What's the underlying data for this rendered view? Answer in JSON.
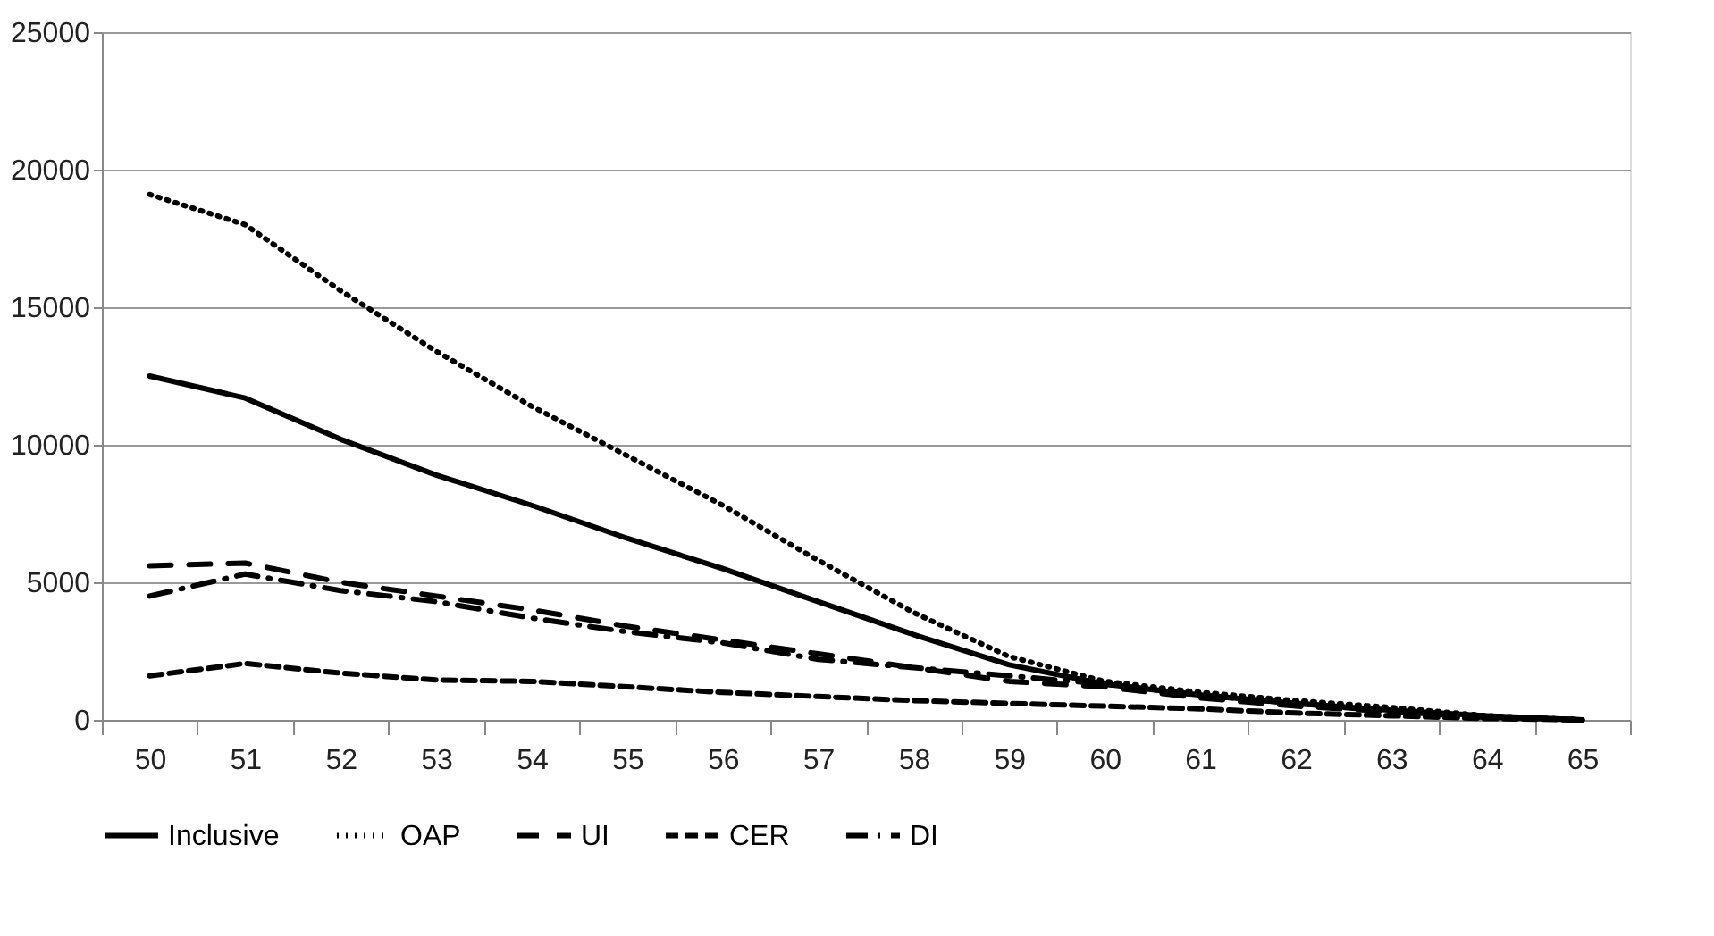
{
  "chart_data": {
    "type": "line",
    "categories": [
      "50",
      "51",
      "52",
      "53",
      "54",
      "55",
      "56",
      "57",
      "58",
      "59",
      "60",
      "61",
      "62",
      "63",
      "64",
      "65"
    ],
    "series": [
      {
        "name": "Inclusive",
        "color": "#000000",
        "line_style": "solid",
        "values": [
          12500,
          11700,
          10200,
          8900,
          7800,
          6600,
          5500,
          4300,
          3100,
          2000,
          1300,
          900,
          600,
          350,
          150,
          0
        ]
      },
      {
        "name": "OAP",
        "color": "#000000",
        "line_style": "dotted",
        "values": [
          19100,
          18000,
          15600,
          13400,
          11400,
          9600,
          7800,
          5800,
          3900,
          2300,
          1400,
          1000,
          700,
          450,
          150,
          0
        ]
      },
      {
        "name": "UI",
        "color": "#000000",
        "line_style": "longdash",
        "values": [
          5600,
          5700,
          5000,
          4500,
          4000,
          3400,
          2900,
          2400,
          1900,
          1400,
          1200,
          800,
          500,
          300,
          100,
          0
        ]
      },
      {
        "name": "CER",
        "color": "#000000",
        "line_style": "dashed",
        "values": [
          1600,
          2050,
          1700,
          1450,
          1400,
          1200,
          1000,
          850,
          700,
          600,
          500,
          400,
          250,
          150,
          50,
          0
        ]
      },
      {
        "name": "DI",
        "color": "#000000",
        "line_style": "dashdot",
        "values": [
          4500,
          5300,
          4700,
          4300,
          3700,
          3200,
          2800,
          2200,
          1900,
          1600,
          1300,
          900,
          600,
          300,
          100,
          0
        ]
      }
    ],
    "ylim": [
      0,
      25000
    ],
    "yticks": [
      0,
      5000,
      10000,
      15000,
      20000,
      25000
    ],
    "grid": "y",
    "legend": "bottom",
    "marker": "none"
  }
}
